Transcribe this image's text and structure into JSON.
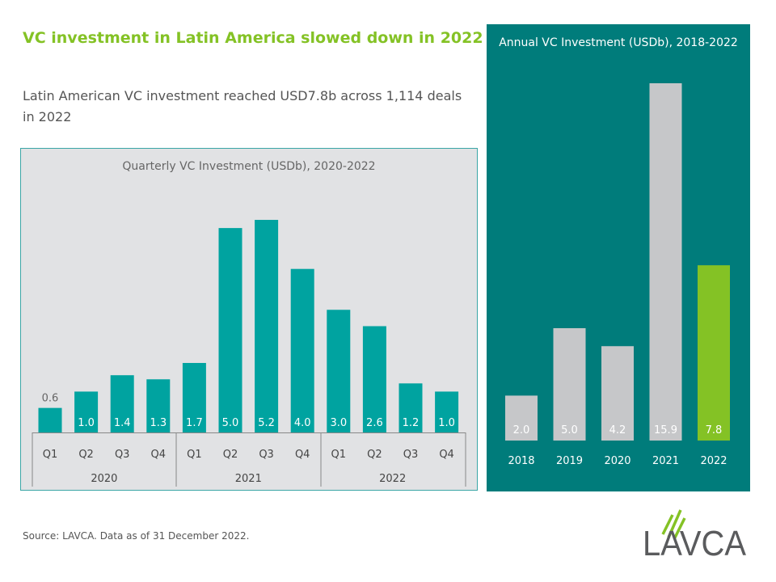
{
  "title": "VC investment in Latin America slowed down in 2022",
  "subtitle": "Latin American VC investment reached USD7.8b across 1,114 deals in 2022",
  "source": "Source: LAVCA. Data as of 31 December 2022.",
  "logo_text": "LAVCA",
  "colors": {
    "teal": "#00a3a0",
    "panel": "#007c7b",
    "gray_bar": "#c6c7c9",
    "green": "#84c225"
  },
  "chart_data": [
    {
      "type": "bar",
      "title": "Quarterly VC Investment (USDb), 2020-2022",
      "categories": [
        "Q1",
        "Q2",
        "Q3",
        "Q4",
        "Q1",
        "Q2",
        "Q3",
        "Q4",
        "Q1",
        "Q2",
        "Q3",
        "Q4"
      ],
      "groups": [
        {
          "label": "2020",
          "span": 4
        },
        {
          "label": "2021",
          "span": 4
        },
        {
          "label": "2022",
          "span": 4
        }
      ],
      "values": [
        0.6,
        1.0,
        1.4,
        1.3,
        1.7,
        5.0,
        5.2,
        4.0,
        3.0,
        2.6,
        1.2,
        1.0
      ],
      "labels": [
        "0.6",
        "1.0",
        "1.4",
        "1.3",
        "1.7",
        "5.0",
        "5.2",
        "4.0",
        "3.0",
        "2.6",
        "1.2",
        "1.0"
      ],
      "ylim": [
        0,
        5.2
      ]
    },
    {
      "type": "bar",
      "title": "Annual VC Investment (USDb), 2018-2022",
      "categories": [
        "2018",
        "2019",
        "2020",
        "2021",
        "2022"
      ],
      "values": [
        2.0,
        5.0,
        4.2,
        15.9,
        7.8
      ],
      "labels": [
        "2.0",
        "5.0",
        "4.2",
        "15.9",
        "7.8"
      ],
      "highlight": "2022",
      "ylim": [
        0,
        15.9
      ]
    }
  ]
}
